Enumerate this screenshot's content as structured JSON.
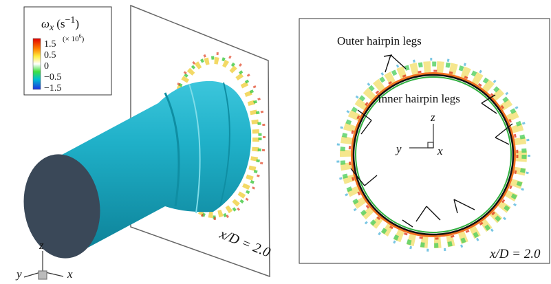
{
  "legend": {
    "title": {
      "symbol": "ω",
      "subscript": "x",
      "unit_open": "(s",
      "unit_exponent": "−1",
      "unit_close": ")"
    },
    "multiplier": {
      "open": "(× 10",
      "exponent": "6",
      "close": ")"
    },
    "ticks": [
      "1.5",
      "0.5",
      "0",
      "−0.5",
      "−1.5"
    ]
  },
  "left_panel": {
    "plane_label": "x/D = 2.0",
    "axes": {
      "z": "z",
      "y": "y",
      "x": "x"
    }
  },
  "right_panel": {
    "plane_label": "x/D = 2.0",
    "outer_label": "Outer hairpin legs",
    "inner_label": "Inner hairpin legs",
    "axes": {
      "z": "z",
      "y": "y",
      "x": "x"
    }
  }
}
